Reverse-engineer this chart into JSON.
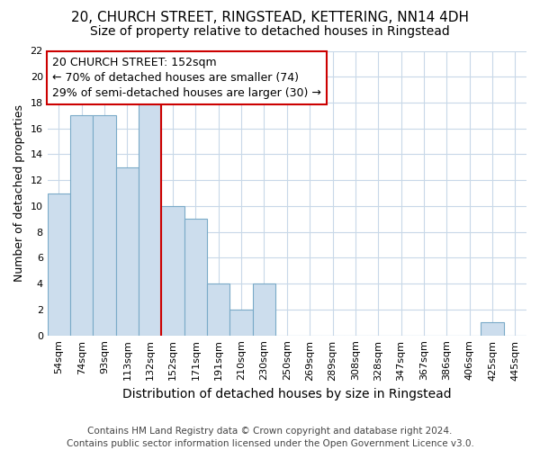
{
  "title1": "20, CHURCH STREET, RINGSTEAD, KETTERING, NN14 4DH",
  "title2": "Size of property relative to detached houses in Ringstead",
  "xlabel": "Distribution of detached houses by size in Ringstead",
  "ylabel": "Number of detached properties",
  "categories": [
    "54sqm",
    "74sqm",
    "93sqm",
    "113sqm",
    "132sqm",
    "152sqm",
    "171sqm",
    "191sqm",
    "210sqm",
    "230sqm",
    "250sqm",
    "269sqm",
    "289sqm",
    "308sqm",
    "328sqm",
    "347sqm",
    "367sqm",
    "386sqm",
    "406sqm",
    "425sqm",
    "445sqm"
  ],
  "values": [
    11,
    17,
    17,
    13,
    18,
    10,
    9,
    4,
    2,
    4,
    0,
    0,
    0,
    0,
    0,
    0,
    0,
    0,
    0,
    1,
    0
  ],
  "bar_color": "#ccdded",
  "bar_edge_color": "#7aaac8",
  "annotation_line1": "20 CHURCH STREET: 152sqm",
  "annotation_line2": "← 70% of detached houses are smaller (74)",
  "annotation_line3": "29% of semi-detached houses are larger (30) →",
  "annotation_box_color": "#ffffff",
  "annotation_box_edge_color": "#cc0000",
  "vline_color": "#cc0000",
  "vline_x": 4.5,
  "ylim": [
    0,
    22
  ],
  "yticks": [
    0,
    2,
    4,
    6,
    8,
    10,
    12,
    14,
    16,
    18,
    20,
    22
  ],
  "footer": "Contains HM Land Registry data © Crown copyright and database right 2024.\nContains public sector information licensed under the Open Government Licence v3.0.",
  "background_color": "#ffffff",
  "grid_color": "#c8d8e8",
  "title1_fontsize": 11,
  "title2_fontsize": 10,
  "xlabel_fontsize": 10,
  "ylabel_fontsize": 9,
  "tick_fontsize": 8,
  "annotation_fontsize": 9,
  "footer_fontsize": 7.5
}
